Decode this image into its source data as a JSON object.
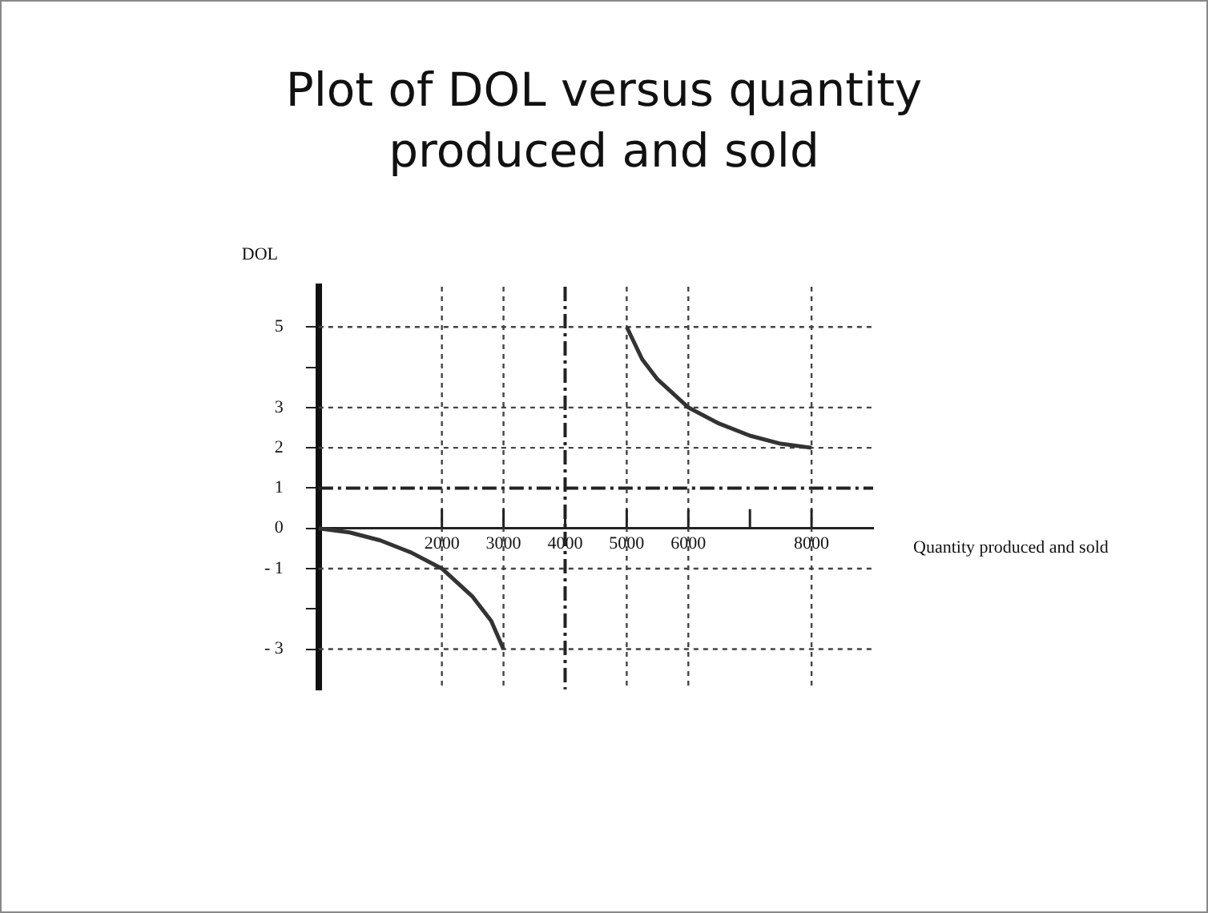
{
  "chart_data": {
    "type": "line",
    "title": "Plot of DOL versus quantity produced and sold",
    "xlabel": "Quantity produced and sold",
    "ylabel": "DOL",
    "xlim": [
      0,
      9000
    ],
    "xticks": [
      2000,
      3000,
      4000,
      5000,
      6000,
      {
        "value": 7000,
        "label": null
      },
      8000
    ],
    "ylim": [
      -4,
      6
    ],
    "yticks": [
      {
        "value": -3,
        "label": "- 3"
      },
      {
        "value": -2,
        "label": null
      },
      {
        "value": -1,
        "label": "- 1"
      },
      0,
      1,
      2,
      3,
      {
        "value": 4,
        "label": null
      },
      5
    ],
    "series": [
      {
        "color": "#333333",
        "x": [
          0,
          500,
          1000,
          1500,
          2000,
          2500,
          2800,
          3000
        ],
        "values": [
          0,
          -0.1,
          -0.3,
          -0.6,
          -1,
          -1.7,
          -2.3,
          -3
        ]
      },
      {
        "color": "#333333",
        "x": [
          5000,
          5250,
          5500,
          6000,
          6500,
          7000,
          7500,
          8000
        ],
        "values": [
          5,
          4.2,
          3.7,
          3,
          2.6,
          2.3,
          2.1,
          2
        ]
      }
    ],
    "ref_lines": [
      {
        "axis": "y",
        "value": 1,
        "line_style": "dashed",
        "color": "#222222"
      },
      {
        "axis": "x",
        "value": 4000,
        "line_style": "dashed",
        "color": "#222222"
      },
      {
        "axis": "y",
        "value": 5,
        "line_style": "dotted",
        "color": "#444444"
      },
      {
        "axis": "y",
        "value": 3,
        "line_style": "dotted",
        "color": "#444444"
      },
      {
        "axis": "y",
        "value": 2,
        "line_style": "dotted",
        "color": "#444444"
      },
      {
        "axis": "y",
        "value": -1,
        "line_style": "dotted",
        "color": "#444444"
      },
      {
        "axis": "y",
        "value": -3,
        "line_style": "dotted",
        "color": "#444444"
      },
      {
        "axis": "x",
        "value": 2000,
        "line_style": "dotted",
        "color": "#444444"
      },
      {
        "axis": "x",
        "value": 3000,
        "line_style": "dotted",
        "color": "#444444"
      },
      {
        "axis": "x",
        "value": 5000,
        "line_style": "dotted",
        "color": "#444444"
      },
      {
        "axis": "x",
        "value": 6000,
        "line_style": "dotted",
        "color": "#444444"
      },
      {
        "axis": "x",
        "value": 8000,
        "line_style": "dotted",
        "color": "#444444"
      }
    ],
    "grid": false,
    "legend": false,
    "marker": "none",
    "line_style": "solid"
  }
}
